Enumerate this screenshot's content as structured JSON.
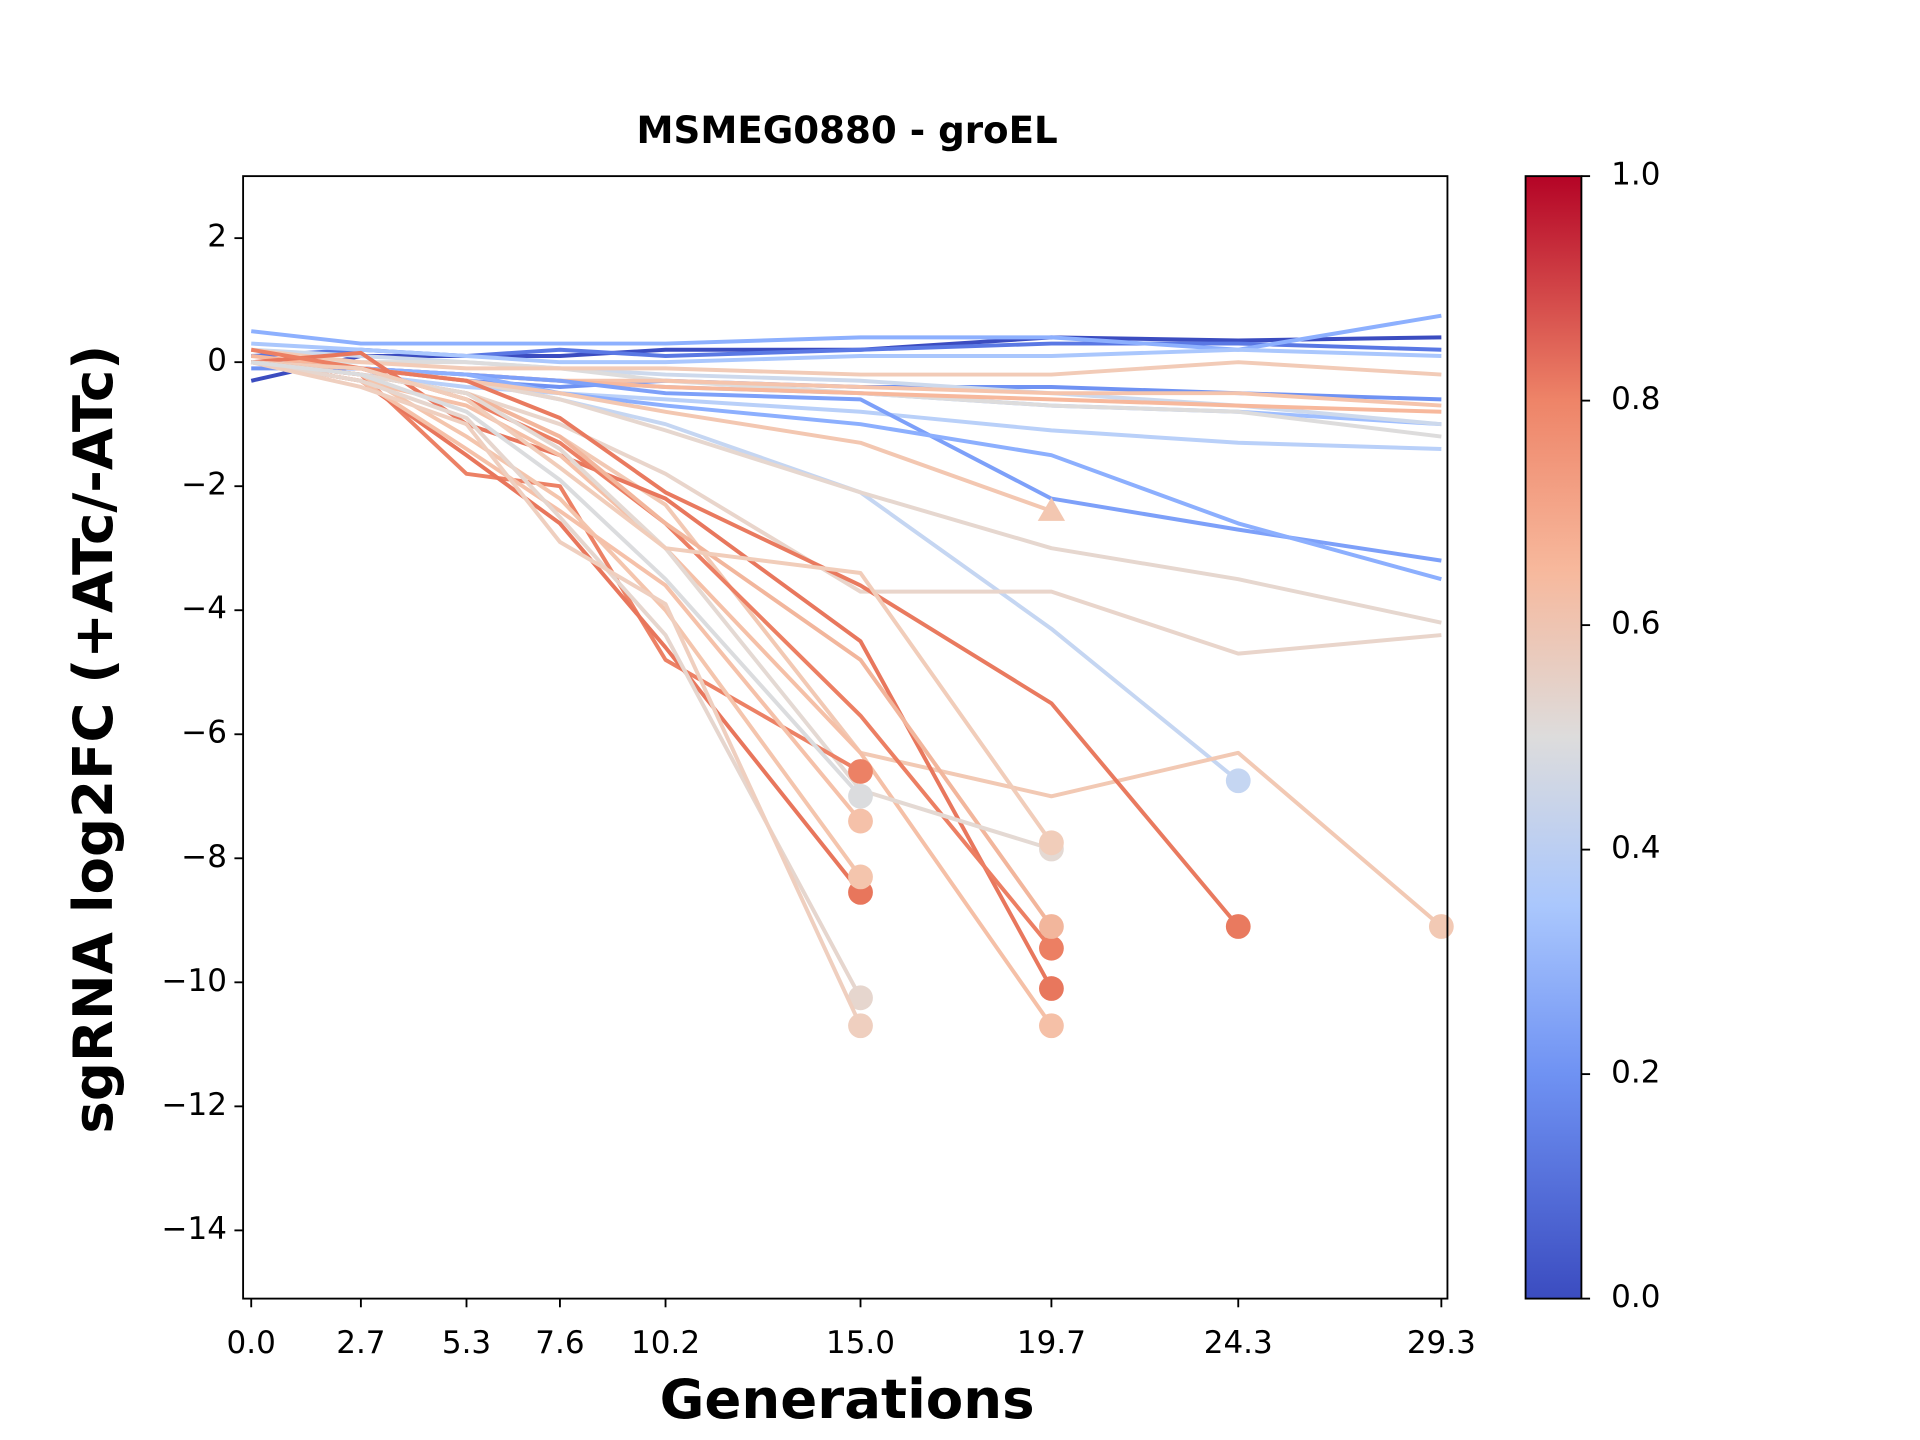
{
  "chart_data": {
    "type": "line",
    "title": "MSMEG0880 - groEL",
    "x_label": "Generations",
    "y_label": "sgRNA log2FC (+ATc/-ATc)",
    "x": [
      0,
      2.7,
      5.3,
      7.6,
      10.2,
      15.0,
      19.7,
      24.3,
      29.3
    ],
    "xlim": [
      -0.2,
      29.45
    ],
    "xticks": [
      {
        "value": 0,
        "label": "0.0"
      },
      2.7,
      5.3,
      7.6,
      10.2,
      {
        "value": 15,
        "label": "15.0"
      },
      19.7,
      24.3,
      29.3
    ],
    "ylim": [
      -15.1,
      3
    ],
    "yticks": [
      {
        "value": 2,
        "label": "2"
      },
      {
        "value": 0,
        "label": "0"
      },
      {
        "value": -2,
        "label": "−2"
      },
      {
        "value": -4,
        "label": "−4"
      },
      {
        "value": -6,
        "label": "−6"
      },
      {
        "value": -8,
        "label": "−8"
      },
      {
        "value": -10,
        "label": "−10"
      },
      {
        "value": -12,
        "label": "−12"
      },
      {
        "value": -14,
        "label": "−14"
      }
    ],
    "colorbar": {
      "clim": [
        0,
        1
      ],
      "ticks": [
        {
          "value": 0,
          "label": "0.0"
        },
        {
          "value": 0.2,
          "label": "0.2"
        },
        {
          "value": 0.4,
          "label": "0.4"
        },
        {
          "value": 0.6,
          "label": "0.6"
        },
        {
          "value": 0.8,
          "label": "0.8"
        },
        {
          "value": 1,
          "label": "1.0"
        }
      ]
    },
    "series": [
      {
        "color": "#3b4cc0",
        "values": [
          -0.3,
          0.1,
          0.1,
          0.1,
          0.2,
          0.2,
          0.4,
          0.35,
          0.4
        ]
      },
      {
        "color": "#5a78e4",
        "values": [
          0.1,
          0.2,
          0.1,
          0.2,
          0.1,
          0.2,
          0.3,
          0.3,
          0.2
        ]
      },
      {
        "color": "#8db0fe",
        "values": [
          0.5,
          0.3,
          0.3,
          0.3,
          0.3,
          0.4,
          0.4,
          0.2,
          0.75
        ]
      },
      {
        "color": "#aac7fd",
        "values": [
          0.3,
          0.2,
          0.1,
          0,
          0,
          0.1,
          0.1,
          0.2,
          0.1
        ]
      },
      {
        "color": "#6f92f3",
        "values": [
          -0.1,
          -0.1,
          -0.3,
          -0.4,
          -0.3,
          -0.4,
          -0.4,
          -0.5,
          -0.6
        ]
      },
      {
        "color": "#9ebeff",
        "values": [
          0,
          -0.1,
          -0.2,
          -0.3,
          -0.4,
          -0.5,
          -0.7,
          -0.8,
          -1.0
        ]
      },
      {
        "color": "#cdd9ec",
        "values": [
          0.2,
          0.1,
          0,
          -0.1,
          -0.2,
          -0.3,
          -0.5,
          -0.7,
          -1.0
        ]
      },
      {
        "color": "#dddcdc",
        "values": [
          0,
          0,
          0,
          -0.1,
          -0.3,
          -0.5,
          -0.7,
          -0.8,
          -1.2
        ]
      },
      {
        "color": "#f2cbb7",
        "values": [
          0.2,
          0,
          -0.1,
          -0.1,
          -0.1,
          -0.2,
          -0.2,
          0,
          -0.2
        ]
      },
      {
        "color": "#f5c4ac",
        "values": [
          0,
          -0.1,
          -0.2,
          -0.3,
          -0.3,
          -0.4,
          -0.5,
          -0.5,
          -0.7
        ]
      },
      {
        "color": "#f7b89c",
        "values": [
          0.1,
          -0.1,
          -0.2,
          -0.3,
          -0.4,
          -0.5,
          -0.6,
          -0.7,
          -0.8
        ]
      },
      {
        "color": "#b9d0f9",
        "values": [
          0,
          -0.2,
          -0.4,
          -0.5,
          -0.6,
          -0.8,
          -1.1,
          -1.3,
          -1.4
        ]
      },
      {
        "color": "#7da0f9",
        "values": [
          0,
          -0.1,
          -0.2,
          -0.3,
          -0.5,
          -0.6,
          -2.2,
          -2.7,
          -3.2
        ]
      },
      {
        "color": "#8caffe",
        "values": [
          0,
          -0.1,
          -0.2,
          -0.5,
          -0.7,
          -1.0,
          -1.5,
          -2.6,
          -3.5
        ]
      },
      {
        "color": "#c5d6f2",
        "marker": "circle",
        "values": [
          0,
          -0.1,
          -0.3,
          -0.6,
          -1.0,
          -2.1,
          -4.3,
          -6.75,
          null
        ]
      },
      {
        "color": "#e6d7cf",
        "values": [
          0,
          -0.1,
          -0.3,
          -0.6,
          -1.1,
          -2.1,
          -3.0,
          -3.5,
          -4.2
        ]
      },
      {
        "color": "#e9d5cb",
        "values": [
          0,
          -0.2,
          -0.5,
          -1.0,
          -1.8,
          -3.7,
          -3.7,
          -4.7,
          -4.4
        ]
      },
      {
        "color": "#f3c7b1",
        "marker": "triangle",
        "values": [
          0,
          -0.1,
          -0.3,
          -0.5,
          -0.8,
          -1.3,
          -2.4,
          null,
          null
        ]
      },
      {
        "color": "#f2c9b4",
        "marker": "circle",
        "values": [
          0,
          -0.2,
          -0.5,
          -1.2,
          -2.3,
          -6.3,
          -7.0,
          -6.3,
          -9.1
        ]
      },
      {
        "color": "#e97a5f",
        "marker": "circle",
        "values": [
          0,
          -0.1,
          -0.3,
          -0.9,
          -2.1,
          -3.6,
          -5.5,
          -9.1,
          null
        ]
      },
      {
        "color": "#e8775d",
        "marker": "circle",
        "values": [
          0,
          0.15,
          -1.0,
          -1.5,
          -2.2,
          -4.5,
          -10.1,
          null,
          null
        ]
      },
      {
        "color": "#ec7f63",
        "marker": "circle",
        "values": [
          0.2,
          -0.1,
          -0.6,
          -1.3,
          -2.6,
          -5.7,
          -9.45,
          null,
          null
        ]
      },
      {
        "color": "#f2b69c",
        "marker": "circle",
        "values": [
          0,
          -0.2,
          -0.5,
          -1.2,
          -2.6,
          -4.8,
          -9.1,
          null,
          null
        ]
      },
      {
        "color": "#f5c0a7",
        "marker": "circle",
        "values": [
          0,
          -0.3,
          -0.7,
          -1.5,
          -3.0,
          -6.3,
          -10.7,
          null,
          null
        ]
      },
      {
        "color": "#e4d9d3",
        "marker": "circle",
        "values": [
          0,
          -0.2,
          -0.5,
          -1.4,
          -3.0,
          -6.9,
          -7.85,
          null,
          null
        ]
      },
      {
        "color": "#f1cdba",
        "marker": "circle",
        "values": [
          0,
          -0.1,
          -0.6,
          -1.7,
          -3.0,
          -3.4,
          -7.75,
          null,
          null
        ]
      },
      {
        "color": "#ec8165",
        "marker": "circle",
        "values": [
          0,
          -0.2,
          -1.8,
          -2.0,
          -4.8,
          -6.6,
          null,
          null,
          null
        ]
      },
      {
        "color": "#e8765c",
        "marker": "circle",
        "values": [
          0,
          -0.3,
          -1.5,
          -2.6,
          -4.6,
          -8.55,
          null,
          null,
          null
        ]
      },
      {
        "color": "#f4c5ad",
        "marker": "circle",
        "values": [
          0,
          -0.2,
          -1.2,
          -2.2,
          -4.0,
          -8.3,
          null,
          null,
          null
        ]
      },
      {
        "color": "#f5c1a9",
        "marker": "circle",
        "values": [
          0,
          -0.3,
          -1.4,
          -2.4,
          -3.6,
          -7.4,
          null,
          null,
          null
        ]
      },
      {
        "color": "#e6d6ce",
        "marker": "circle",
        "values": [
          0,
          -0.3,
          -0.9,
          -2.5,
          -4.4,
          -10.25,
          null,
          null,
          null
        ]
      },
      {
        "color": "#efcfbf",
        "marker": "circle",
        "values": [
          0,
          -0.4,
          -1.0,
          -2.9,
          -3.9,
          -10.7,
          null,
          null,
          null
        ]
      },
      {
        "color": "#dbdcde",
        "marker": "circle",
        "values": [
          0,
          -0.2,
          -0.8,
          -1.9,
          -3.5,
          -7.0,
          null,
          null,
          null
        ]
      }
    ]
  }
}
